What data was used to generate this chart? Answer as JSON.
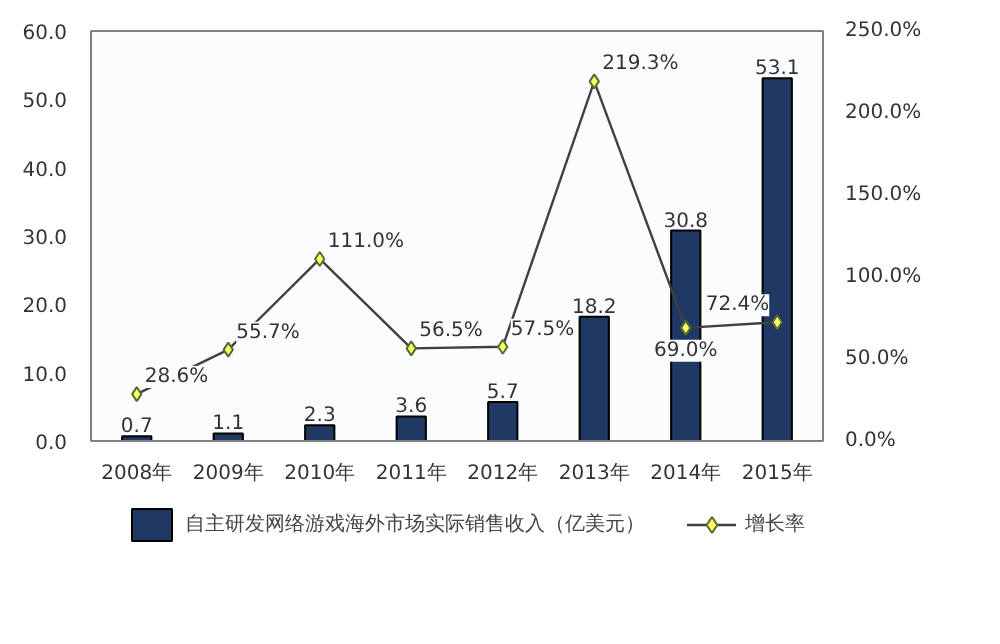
{
  "chart_data": {
    "type": "bar",
    "categories": [
      "2008年",
      "2009年",
      "2010年",
      "2011年",
      "2012年",
      "2013年",
      "2014年",
      "2015年"
    ],
    "series": [
      {
        "name": "自主研发网络游戏海外市场实际销售收入（亿美元）",
        "color": "#1f3864",
        "values": [
          0.7,
          1.1,
          2.3,
          3.6,
          5.7,
          18.2,
          30.8,
          53.1
        ],
        "value_labels": [
          "0.7",
          "1.1",
          "2.3",
          "3.6",
          "5.7",
          "18.2",
          "30.8",
          "53.1"
        ]
      },
      {
        "name": "增长率",
        "type": "line",
        "axis": "y2",
        "color": "#404040",
        "values": [
          28.6,
          55.7,
          111.0,
          56.5,
          57.5,
          219.3,
          69.0,
          72.4
        ],
        "value_labels": [
          "28.6%",
          "55.7%",
          "111.0%",
          "56.5%",
          "57.5%",
          "219.3%",
          "69.0%",
          "72.4%"
        ]
      }
    ],
    "ylim": [
      0,
      60
    ],
    "yticks": [
      {
        "value": 0,
        "label": "0.0"
      },
      {
        "value": 10,
        "label": "10.0"
      },
      {
        "value": 20,
        "label": "20.0"
      },
      {
        "value": 30,
        "label": "30.0"
      },
      {
        "value": 40,
        "label": "40.0"
      },
      {
        "value": 50,
        "label": "50.0"
      },
      {
        "value": 60,
        "label": "60.0"
      }
    ],
    "y2lim": [
      0,
      250
    ],
    "y2ticks": [
      {
        "value": 0,
        "label": "0.0%"
      },
      {
        "value": 50,
        "label": "50.0%"
      },
      {
        "value": 100,
        "label": "100.0%"
      },
      {
        "value": 150,
        "label": "150.0%"
      },
      {
        "value": 200,
        "label": "200.0%"
      },
      {
        "value": 250,
        "label": "250.0%"
      }
    ],
    "legend": "bottom",
    "grid": false,
    "marker": "diamond",
    "line_style": "solid"
  }
}
